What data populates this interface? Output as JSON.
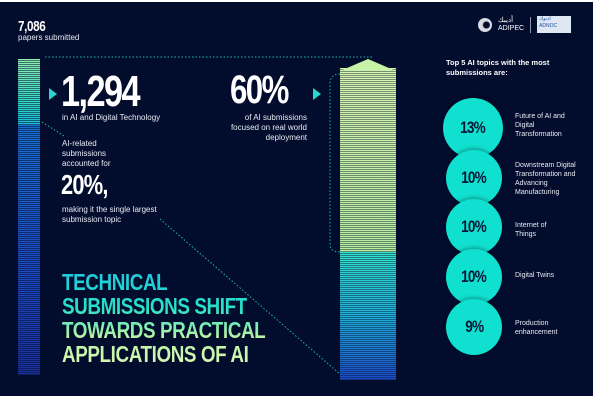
{
  "total": {
    "value": "7,086",
    "label": "papers submitted"
  },
  "ai_digital": {
    "value": "1,294",
    "label": "in AI and Digital Technology"
  },
  "ai_share": {
    "intro": "AI-related submissions accounted for",
    "value": "20%,",
    "outro": "making it the single largest submission topic"
  },
  "deployment": {
    "value": "60%",
    "label": "of AI submissions focused on real world deployment"
  },
  "headline": [
    "TECHNICAL",
    "SUBMISSIONS SHIFT",
    "TOWARDS PRACTICAL",
    "APPLICATIONS OF AI"
  ],
  "logos": {
    "adipec": "ADIPEC",
    "adipec_arabic": "أديبك",
    "adnoc": "ADNOC",
    "adnoc_arabic": "أدنوك"
  },
  "topics": {
    "title": "Top 5 AI topics with the most submissions are:",
    "items": [
      {
        "percent": "13%",
        "label": "Future of AI and Digital Transformation"
      },
      {
        "percent": "10%",
        "label": "Downstream Digital Transformation and Advancing Manufacturing"
      },
      {
        "percent": "10%",
        "label": "Internet of Things"
      },
      {
        "percent": "10%",
        "label": "Digital Twins"
      },
      {
        "percent": "9%",
        "label": "Production enhancement"
      }
    ]
  },
  "colors": {
    "background": "#020c2c",
    "accent": "#10e0cf",
    "light_green": "#c8f3a6",
    "blue": "#1d48c0"
  }
}
